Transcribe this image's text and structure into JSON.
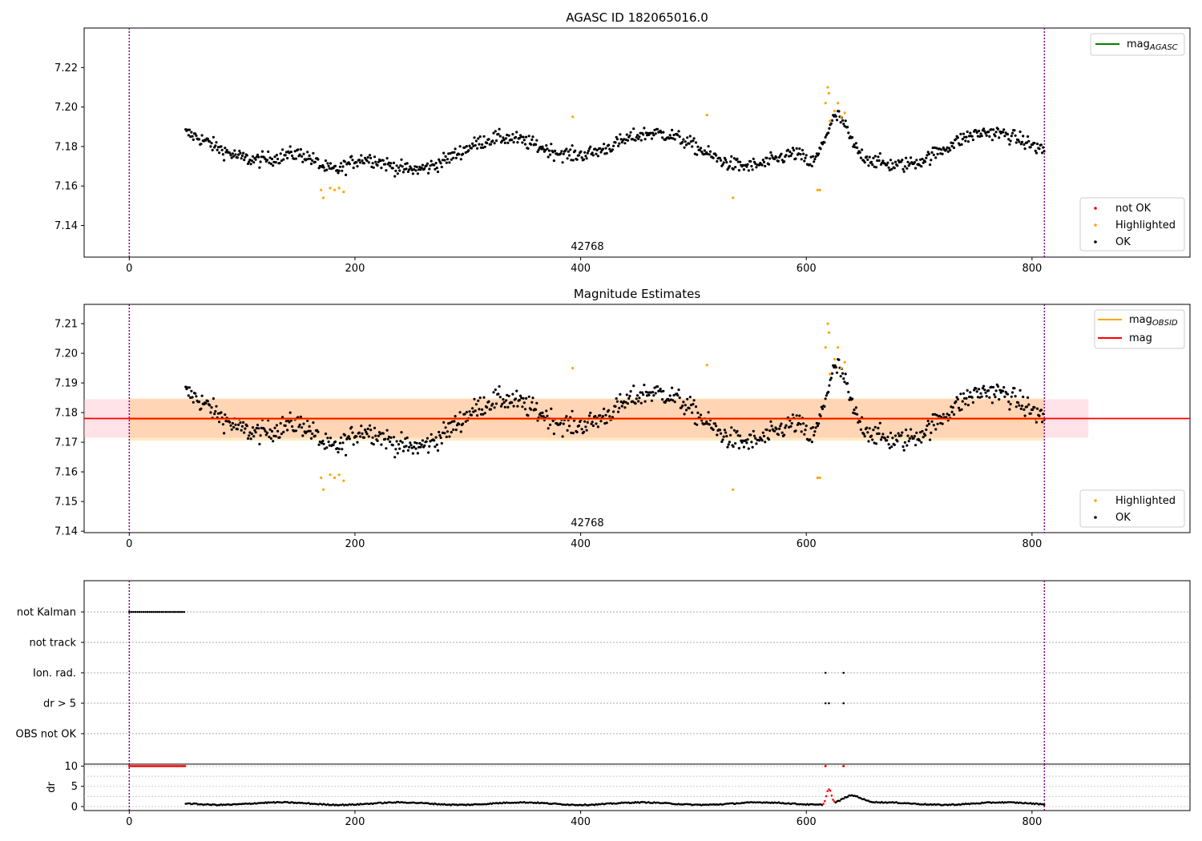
{
  "chart_data": [
    {
      "type": "scatter",
      "title": "AGASC ID 182065016.0",
      "xlim": [
        -40,
        940
      ],
      "ylim": [
        7.124,
        7.24
      ],
      "xticks": [
        "0",
        "200",
        "400",
        "600",
        "800"
      ],
      "yticks": [
        "7.14",
        "7.16",
        "7.18",
        "7.20",
        "7.22"
      ],
      "obsid_label": "42768",
      "vlines_x": [
        0,
        811
      ],
      "grid": false,
      "legend_top": {
        "placement": "top-right",
        "entries": [
          {
            "label": "mag",
            "subscript": "AGASC",
            "color": "#008000"
          }
        ]
      },
      "legend_bottom": {
        "placement": "bottom-right",
        "entries": [
          {
            "label": "not OK",
            "color": "#ff0000"
          },
          {
            "label": "Highlighted",
            "color": "#ffa500"
          },
          {
            "label": "OK",
            "color": "#000000"
          }
        ]
      },
      "series": [
        {
          "name": "OK",
          "color": "#000000",
          "x_range": [
            50,
            811
          ],
          "mean": 7.178,
          "spread": 0.006
        },
        {
          "name": "Highlighted",
          "color": "#ffa500",
          "x": [
            170,
            172,
            178,
            182,
            186,
            190,
            393,
            512,
            535,
            610,
            612,
            617,
            619,
            620,
            621,
            625,
            628,
            631,
            634
          ],
          "y": [
            7.158,
            7.154,
            7.159,
            7.158,
            7.159,
            7.157,
            7.195,
            7.196,
            7.154,
            7.158,
            7.158,
            7.202,
            7.21,
            7.207,
            7.193,
            7.198,
            7.202,
            7.195,
            7.197
          ]
        }
      ]
    },
    {
      "type": "scatter",
      "title": "Magnitude Estimates",
      "xlim": [
        -40,
        940
      ],
      "ylim": [
        7.1395,
        7.2165
      ],
      "xticks": [
        "0",
        "200",
        "400",
        "600",
        "800"
      ],
      "yticks": [
        "7.14",
        "7.15",
        "7.16",
        "7.17",
        "7.18",
        "7.19",
        "7.20",
        "7.21"
      ],
      "obsid_label": "42768",
      "vlines_x": [
        0,
        811
      ],
      "grid": false,
      "mag_line": 7.178,
      "mag_obsid_line": 7.1778,
      "mag_band": [
        7.1715,
        7.1845
      ],
      "mag_obsid_band": [
        7.1705,
        7.1848
      ],
      "legend_top": {
        "placement": "top-right",
        "entries": [
          {
            "label": "mag",
            "subscript": "OBSID",
            "color": "#ffa500"
          },
          {
            "label": "mag",
            "subscript": "",
            "color": "#ff0000"
          }
        ]
      },
      "legend_bottom": {
        "placement": "bottom-right",
        "entries": [
          {
            "label": "Highlighted",
            "color": "#ffa500"
          },
          {
            "label": "OK",
            "color": "#000000"
          }
        ]
      }
    },
    {
      "type": "scatter",
      "title": "",
      "xlim": [
        -40,
        940
      ],
      "xticks": [
        "0",
        "200",
        "400",
        "600",
        "800"
      ],
      "flag_labels": [
        "not Kalman",
        "not track",
        "Ion. rad.",
        "dr > 5",
        "OBS not OK"
      ],
      "not_kalman_x_range": [
        0,
        50
      ],
      "ion_rad_x": [
        617,
        633
      ],
      "dr_gt5_x": [
        617,
        620,
        633
      ],
      "dr_ylabel": "dr",
      "dr_ylim": [
        -1,
        10.5
      ],
      "dr_yticks": [
        "0",
        "5",
        "10"
      ],
      "dr_clipped_x_range": [
        0,
        50
      ],
      "dr_clipped_x": [
        617,
        633
      ],
      "dr_clip_value": 10,
      "dr_peak": {
        "x": 620,
        "y": 5
      }
    }
  ]
}
